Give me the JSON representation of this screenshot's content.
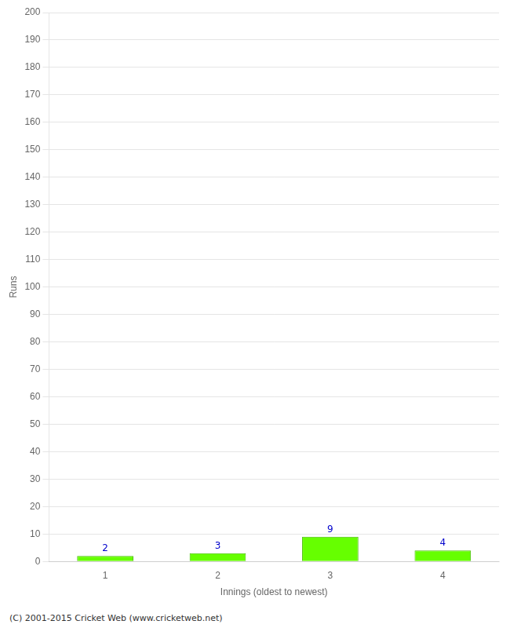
{
  "chart_data": {
    "type": "bar",
    "categories": [
      "1",
      "2",
      "3",
      "4"
    ],
    "values": [
      2,
      3,
      9,
      4
    ],
    "color": "#66ff00",
    "xlabel": "Innings (oldest to newest)",
    "ylabel": "Runs",
    "ylim": [
      0,
      200
    ],
    "yticks": [
      0,
      10,
      20,
      30,
      40,
      50,
      60,
      70,
      80,
      90,
      100,
      110,
      120,
      130,
      140,
      150,
      160,
      170,
      180,
      190,
      200
    ],
    "grid": true,
    "data_labels": true,
    "footnote": "(C) 2001-2015 Cricket Web (www.cricketweb.net)"
  }
}
